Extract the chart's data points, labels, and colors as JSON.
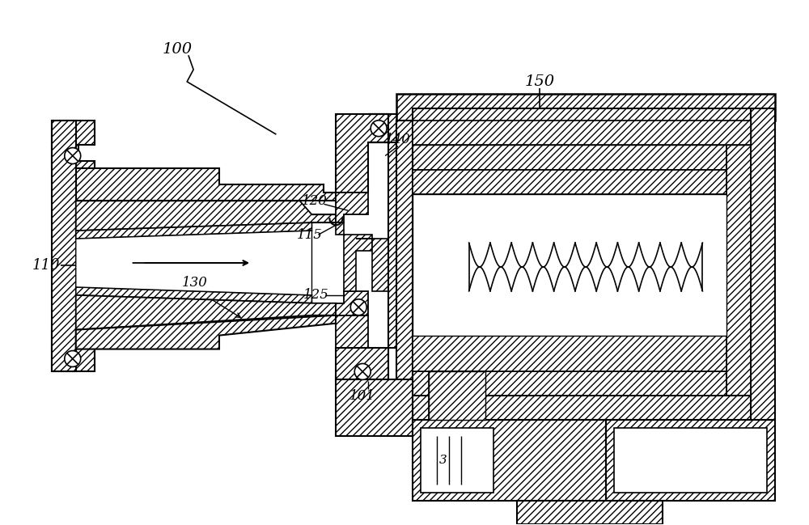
{
  "background_color": "#ffffff",
  "line_color": "#000000",
  "figsize": [
    10.0,
    6.49
  ],
  "dpi": 100
}
